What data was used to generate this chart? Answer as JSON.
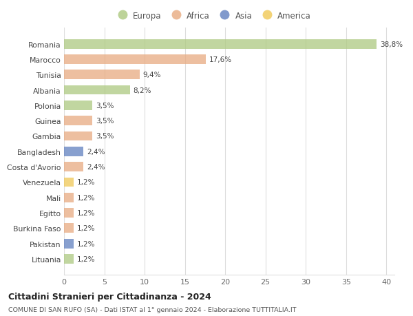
{
  "countries": [
    "Romania",
    "Marocco",
    "Tunisia",
    "Albania",
    "Polonia",
    "Guinea",
    "Gambia",
    "Bangladesh",
    "Costa d'Avorio",
    "Venezuela",
    "Mali",
    "Egitto",
    "Burkina Faso",
    "Pakistan",
    "Lituania"
  ],
  "values": [
    38.8,
    17.6,
    9.4,
    8.2,
    3.5,
    3.5,
    3.5,
    2.4,
    2.4,
    1.2,
    1.2,
    1.2,
    1.2,
    1.2,
    1.2
  ],
  "labels": [
    "38,8%",
    "17,6%",
    "9,4%",
    "8,2%",
    "3,5%",
    "3,5%",
    "3,5%",
    "2,4%",
    "2,4%",
    "1,2%",
    "1,2%",
    "1,2%",
    "1,2%",
    "1,2%",
    "1,2%"
  ],
  "continent": [
    "Europa",
    "Africa",
    "Africa",
    "Europa",
    "Europa",
    "Africa",
    "Africa",
    "Asia",
    "Africa",
    "America",
    "Africa",
    "Africa",
    "Africa",
    "Asia",
    "Europa"
  ],
  "colors": {
    "Europa": "#adc980",
    "Africa": "#e8aa80",
    "Asia": "#6080c0",
    "America": "#f0c855"
  },
  "title1": "Cittadini Stranieri per Cittadinanza - 2024",
  "title2": "COMUNE DI SAN RUFO (SA) - Dati ISTAT al 1° gennaio 2024 - Elaborazione TUTTITALIA.IT",
  "xlim": [
    0,
    41
  ],
  "xticks": [
    0,
    5,
    10,
    15,
    20,
    25,
    30,
    35,
    40
  ],
  "background_color": "#ffffff",
  "grid_color": "#dddddd"
}
